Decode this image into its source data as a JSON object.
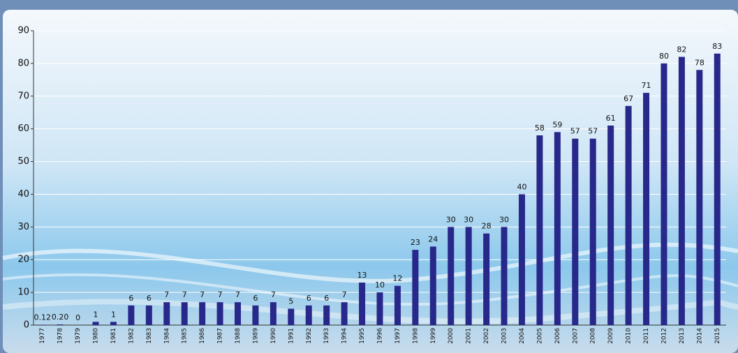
{
  "chart_data": {
    "type": "bar",
    "categories": [
      "1977",
      "1978",
      "1979",
      "1980",
      "1981",
      "1982",
      "1983",
      "1984",
      "1985",
      "1986",
      "1987",
      "1988",
      "1989",
      "1990",
      "1991",
      "1992",
      "1993",
      "1994",
      "1995",
      "1996",
      "1997",
      "1998",
      "1999",
      "2000",
      "2001",
      "2002",
      "2003",
      "2004",
      "2005",
      "2006",
      "2007",
      "2008",
      "2009",
      "2010",
      "2011",
      "2012",
      "2013",
      "2014",
      "2015"
    ],
    "values": [
      0.12,
      0.2,
      0,
      1,
      1,
      6,
      6,
      7,
      7,
      7,
      7,
      7,
      6,
      7,
      5,
      6,
      6,
      7,
      13,
      10,
      12,
      23,
      24,
      30,
      30,
      28,
      30,
      40,
      58,
      59,
      57,
      57,
      61,
      67,
      71,
      80,
      82,
      78,
      83
    ],
    "value_labels": [
      "0.12",
      "0.20",
      "0",
      "1",
      "1",
      "6",
      "6",
      "7",
      "7",
      "7",
      "7",
      "7",
      "6",
      "7",
      "5",
      "6",
      "6",
      "7",
      "13",
      "10",
      "12",
      "23",
      "24",
      "30",
      "30",
      "28",
      "30",
      "40",
      "58",
      "59",
      "57",
      "57",
      "61",
      "67",
      "71",
      "80",
      "82",
      "78",
      "83"
    ],
    "color": "#27288a",
    "ylim": [
      0,
      90
    ],
    "yticks": [
      0,
      10,
      20,
      30,
      40,
      50,
      60,
      70,
      80,
      90
    ],
    "grid": true
  }
}
